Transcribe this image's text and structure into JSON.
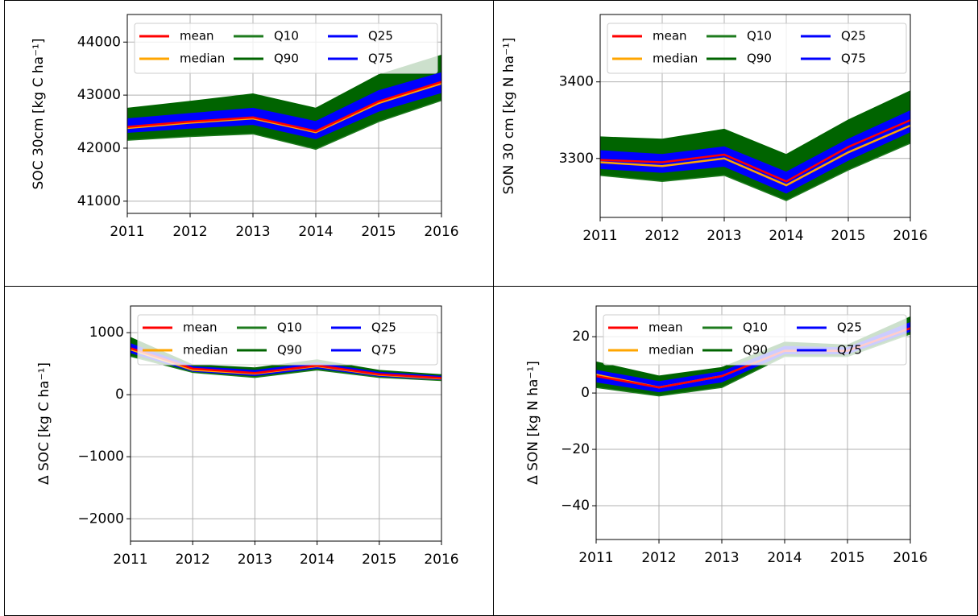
{
  "chart_data": [
    {
      "type": "line",
      "y_label": "SOC 30cm [kg C ha⁻¹]",
      "grid": true,
      "legend": "upper left",
      "x": [
        2011,
        2012,
        2013,
        2014,
        2015,
        2016
      ],
      "xlim": [
        2011,
        2016
      ],
      "xticks": [
        2011,
        2012,
        2013,
        2014,
        2015,
        2016
      ],
      "ylim": [
        40770,
        44520
      ],
      "yticks": [
        41000,
        42000,
        43000,
        44000
      ],
      "series": [
        {
          "name": "mean",
          "color": "#ff0000",
          "values": [
            42400,
            42500,
            42580,
            42320,
            42880,
            43250
          ]
        },
        {
          "name": "median",
          "color": "#ffa500",
          "values": [
            42380,
            42480,
            42560,
            42300,
            42850,
            43220
          ]
        },
        {
          "name": "Q10",
          "color": "#1e7b1e",
          "values": [
            42150,
            42220,
            42270,
            41980,
            42500,
            42900
          ]
        },
        {
          "name": "Q90",
          "color": "#006400",
          "values": [
            42750,
            42880,
            43020,
            42750,
            43380,
            43750
          ]
        },
        {
          "name": "Q25",
          "color": "#0000ff",
          "values": [
            42300,
            42380,
            42450,
            42180,
            42700,
            43050
          ]
        },
        {
          "name": "Q75",
          "color": "#0000ff",
          "values": [
            42550,
            42650,
            42750,
            42500,
            43080,
            43420
          ]
        }
      ]
    },
    {
      "type": "line",
      "y_label": "SON 30 cm [kg N ha⁻¹]",
      "grid": true,
      "legend": "upper left",
      "x": [
        2011,
        2012,
        2013,
        2014,
        2015,
        2016
      ],
      "xlim": [
        2011,
        2016
      ],
      "xticks": [
        2011,
        2012,
        2013,
        2014,
        2015,
        2016
      ],
      "ylim": [
        3223,
        3488
      ],
      "yticks": [
        3300,
        3400
      ],
      "series": [
        {
          "name": "mean",
          "color": "#ff0000",
          "values": [
            3298,
            3295,
            3305,
            3270,
            3315,
            3350
          ]
        },
        {
          "name": "median",
          "color": "#ffa500",
          "values": [
            3295,
            3290,
            3300,
            3265,
            3308,
            3343
          ]
        },
        {
          "name": "Q10",
          "color": "#1e7b1e",
          "values": [
            3278,
            3270,
            3278,
            3245,
            3285,
            3320
          ]
        },
        {
          "name": "Q90",
          "color": "#006400",
          "values": [
            3328,
            3325,
            3338,
            3305,
            3350,
            3388
          ]
        },
        {
          "name": "Q25",
          "color": "#0000ff",
          "values": [
            3287,
            3282,
            3290,
            3255,
            3298,
            3335
          ]
        },
        {
          "name": "Q75",
          "color": "#0000ff",
          "values": [
            3310,
            3305,
            3315,
            3282,
            3325,
            3362
          ]
        }
      ]
    },
    {
      "type": "line",
      "y_label": "Δ SOC [kg C ha⁻¹]",
      "grid": true,
      "legend": "upper left",
      "x": [
        2011,
        2012,
        2013,
        2014,
        2015,
        2016
      ],
      "xlim": [
        2011,
        2016
      ],
      "xticks": [
        2011,
        2012,
        2013,
        2014,
        2015,
        2016
      ],
      "ylim": [
        -2360,
        1430
      ],
      "yticks": [
        {
          "value": -2000,
          "label": "−2000"
        },
        {
          "value": -1000,
          "label": "−1000"
        },
        0,
        1000
      ],
      "series": [
        {
          "name": "mean",
          "color": "#ff0000",
          "values": [
            750,
            420,
            350,
            470,
            330,
            270
          ]
        },
        {
          "name": "median",
          "color": "#ffa500",
          "values": [
            730,
            400,
            340,
            460,
            320,
            260
          ]
        },
        {
          "name": "Q10",
          "color": "#1e7b1e",
          "values": [
            620,
            360,
            280,
            400,
            280,
            230
          ]
        },
        {
          "name": "Q90",
          "color": "#006400",
          "values": [
            920,
            480,
            430,
            560,
            390,
            320
          ]
        },
        {
          "name": "Q25",
          "color": "#0000ff",
          "values": [
            680,
            380,
            310,
            430,
            300,
            245
          ]
        },
        {
          "name": "Q75",
          "color": "#0000ff",
          "values": [
            820,
            450,
            390,
            510,
            360,
            295
          ]
        }
      ]
    },
    {
      "type": "line",
      "y_label": "Δ SON [kg N ha⁻¹]",
      "grid": true,
      "legend": "upper left",
      "x": [
        2011,
        2012,
        2013,
        2014,
        2015,
        2016
      ],
      "xlim": [
        2011,
        2016
      ],
      "xticks": [
        2011,
        2012,
        2013,
        2014,
        2015,
        2016
      ],
      "ylim": [
        -52,
        30.9
      ],
      "yticks": [
        {
          "value": -40,
          "label": "−40"
        },
        {
          "value": -20,
          "label": "−20"
        },
        0,
        20
      ],
      "series": [
        {
          "name": "mean",
          "color": "#ff0000",
          "values": [
            6,
            2,
            6,
            15,
            15,
            23
          ]
        },
        {
          "name": "median",
          "color": "#ffa500",
          "values": [
            6.5,
            2,
            6,
            15,
            15,
            23
          ]
        },
        {
          "name": "Q10",
          "color": "#1e7b1e",
          "values": [
            2,
            -1,
            2,
            13,
            13,
            21
          ]
        },
        {
          "name": "Q90",
          "color": "#006400",
          "values": [
            11,
            6,
            9,
            18,
            17,
            27
          ]
        },
        {
          "name": "Q25",
          "color": "#0000ff",
          "values": [
            4,
            0.5,
            4,
            14,
            14,
            22
          ]
        },
        {
          "name": "Q75",
          "color": "#0000ff",
          "values": [
            8,
            4,
            7.5,
            16.5,
            16,
            25
          ]
        }
      ]
    }
  ]
}
